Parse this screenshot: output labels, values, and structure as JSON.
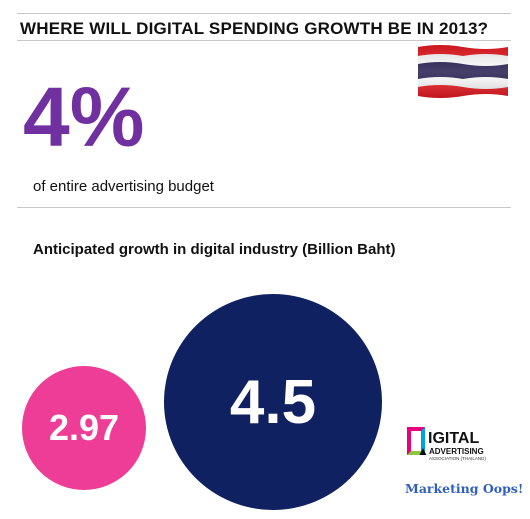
{
  "header": {
    "title": "WHERE WILL DIGITAL SPENDING GROWTH BE IN 2013?"
  },
  "stat": {
    "value": "4%",
    "caption": "of entire advertising  budget",
    "color": "#7030a0"
  },
  "flag": {
    "icon": "thailand-flag-icon",
    "colors": [
      "#ed1c24",
      "#ffffff",
      "#241d4f"
    ]
  },
  "growth": {
    "title": "Anticipated growth in digital industry (Billion Baht)",
    "bubbles": [
      {
        "label": "2.97",
        "color": "#ee3d96"
      },
      {
        "label": "4.5",
        "color": "#0f2160"
      }
    ]
  },
  "logo": {
    "line1": "IGITAL",
    "line2": "ADVERTISING",
    "line3": "ASSOCIATION (THAILAND)"
  },
  "brand": "Marketing Oops!"
}
